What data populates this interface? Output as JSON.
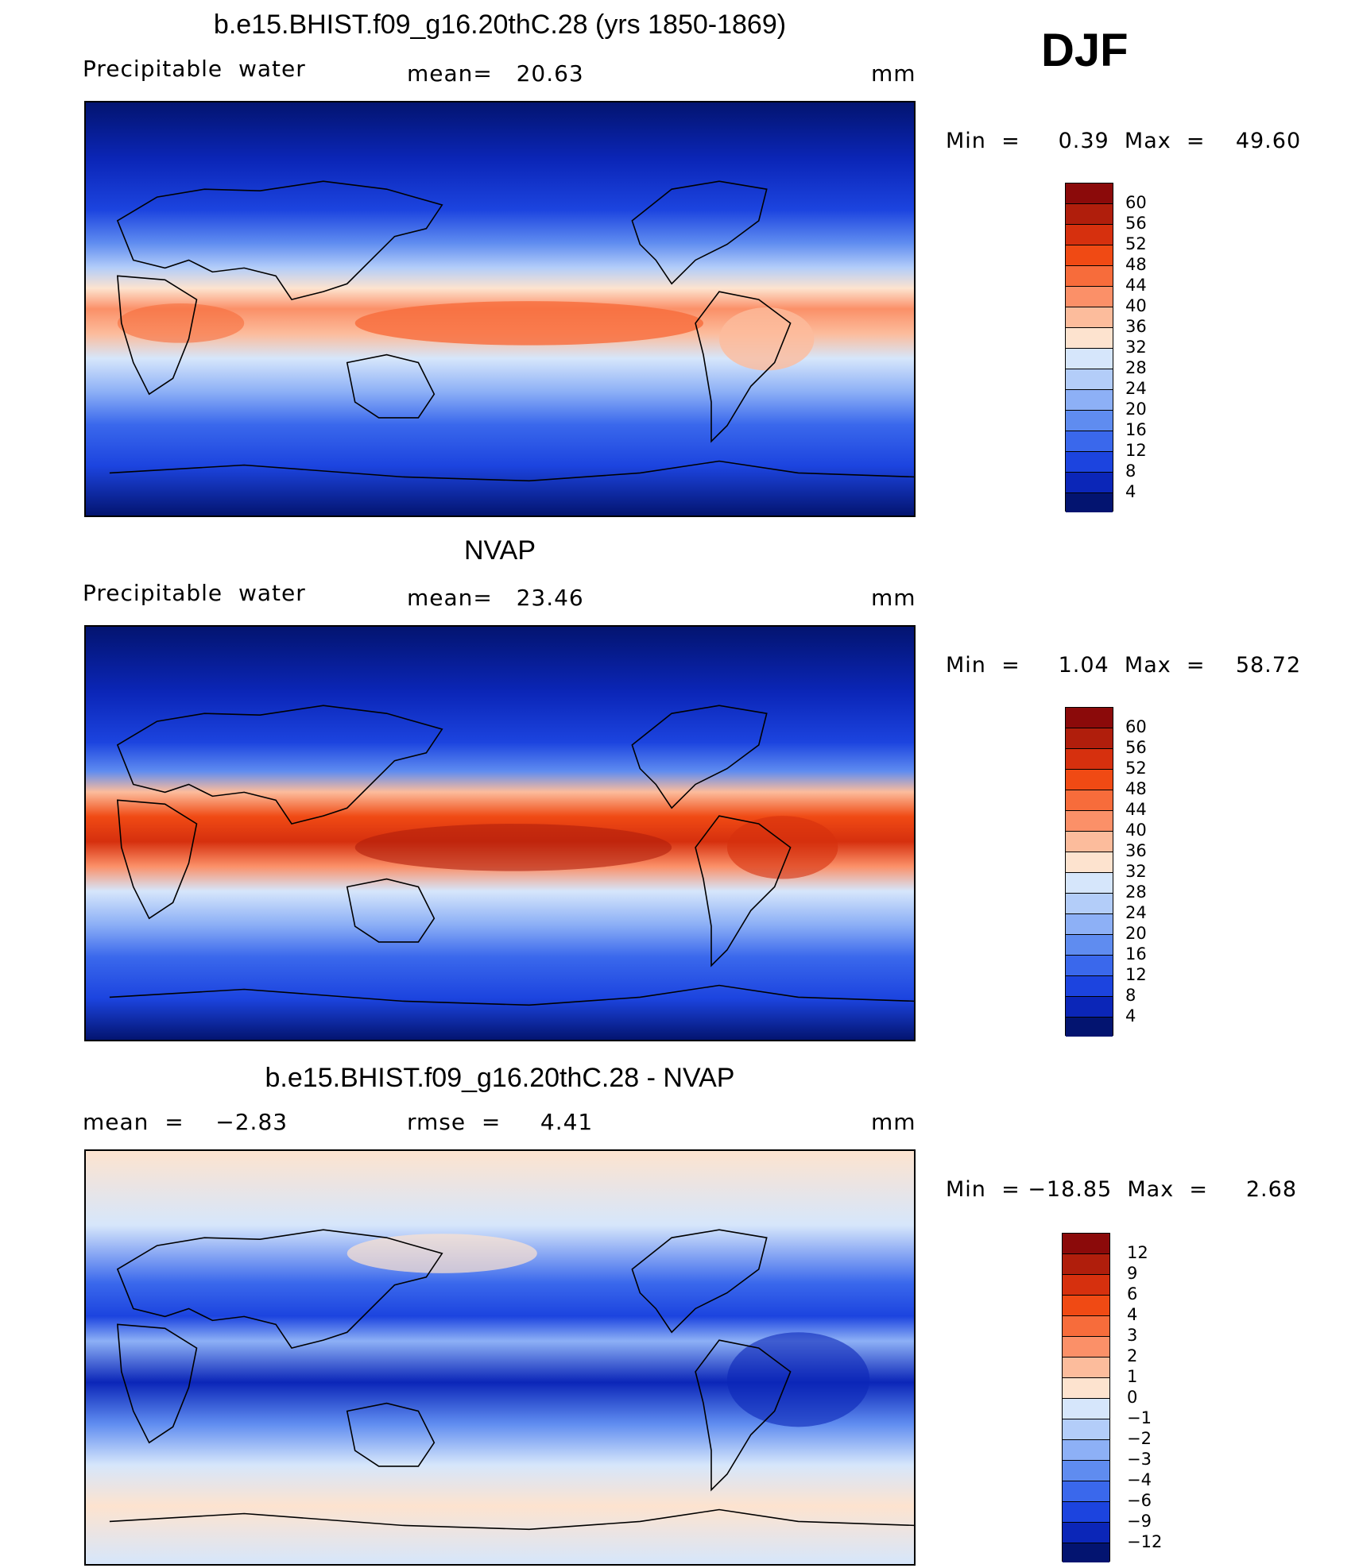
{
  "season": "DJF",
  "panels": [
    {
      "id": "model",
      "title": "b.e15.BHIST.f09_g16.20thC.28 (yrs 1850-1869)",
      "left_label": "Precipitable  water",
      "center_label": "mean=   20.63",
      "units": "mm",
      "minmax": "Min  =     0.39  Max  =    49.60",
      "colorbar": {
        "labels": [
          "60",
          "56",
          "52",
          "48",
          "44",
          "40",
          "36",
          "32",
          "28",
          "24",
          "20",
          "16",
          "12",
          "8",
          "4"
        ],
        "colors": [
          "#8b0a0a",
          "#b01e0c",
          "#d6300e",
          "#f04a14",
          "#f76c3b",
          "#fb9068",
          "#fcbc9c",
          "#fde3cf",
          "#d6e6fb",
          "#b3cdf9",
          "#8db0f6",
          "#5f8cf0",
          "#3a68ec",
          "#1c44df",
          "#0b26b8",
          "#031470"
        ]
      }
    },
    {
      "id": "obs",
      "title": "NVAP",
      "left_label": "Precipitable  water",
      "center_label": "mean=   23.46",
      "units": "mm",
      "minmax": "Min  =     1.04  Max  =    58.72",
      "colorbar": {
        "labels": [
          "60",
          "56",
          "52",
          "48",
          "44",
          "40",
          "36",
          "32",
          "28",
          "24",
          "20",
          "16",
          "12",
          "8",
          "4"
        ],
        "colors": [
          "#8b0a0a",
          "#b01e0c",
          "#d6300e",
          "#f04a14",
          "#f76c3b",
          "#fb9068",
          "#fcbc9c",
          "#fde3cf",
          "#d6e6fb",
          "#b3cdf9",
          "#8db0f6",
          "#5f8cf0",
          "#3a68ec",
          "#1c44df",
          "#0b26b8",
          "#031470"
        ]
      }
    },
    {
      "id": "diff",
      "title": "b.e15.BHIST.f09_g16.20thC.28 - NVAP",
      "left_label": "mean  =    −2.83",
      "center_label": "rmse  =     4.41",
      "units": "mm",
      "minmax": "Min  = −18.85  Max  =     2.68",
      "colorbar": {
        "labels": [
          "12",
          "9",
          "6",
          "4",
          "3",
          "2",
          "1",
          "0",
          "−1",
          "−2",
          "−3",
          "−4",
          "−6",
          "−9",
          "−12"
        ],
        "colors": [
          "#8b0a0a",
          "#b01e0c",
          "#d6300e",
          "#f04a14",
          "#f76c3b",
          "#fb9068",
          "#fcbc9c",
          "#fde3cf",
          "#d6e6fb",
          "#b3cdf9",
          "#8db0f6",
          "#5f8cf0",
          "#3a68ec",
          "#1c44df",
          "#0b26b8",
          "#031470"
        ]
      }
    }
  ]
}
